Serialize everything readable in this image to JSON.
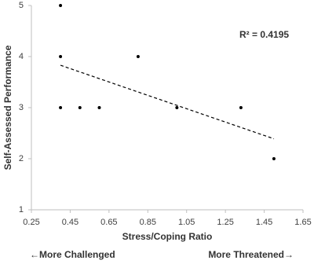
{
  "chart_data": {
    "type": "scatter",
    "x_label": "Stress/Coping Ratio",
    "y_label": "Self-Assessed Performance",
    "annotation": "R² = 0.4195",
    "left_note": "←More Challenged",
    "right_note": "More Threatened→",
    "x": [
      0.4,
      0.4,
      0.4,
      0.5,
      0.6,
      0.8,
      1.0,
      1.33,
      1.5
    ],
    "values": [
      5,
      4,
      3,
      3,
      3,
      4,
      3,
      3,
      2
    ],
    "color": "#000000",
    "trendline": {
      "x": [
        0.4,
        1.5
      ],
      "values": [
        3.83,
        2.39
      ],
      "color": "#000000"
    },
    "xlim": [
      0.25,
      1.65
    ],
    "xticks": [
      0.25,
      0.45,
      0.65,
      0.85,
      1.05,
      1.25,
      1.45,
      1.65
    ],
    "ylim": [
      1,
      5
    ],
    "yticks": [
      1,
      2,
      3,
      4,
      5
    ],
    "grid": false
  }
}
